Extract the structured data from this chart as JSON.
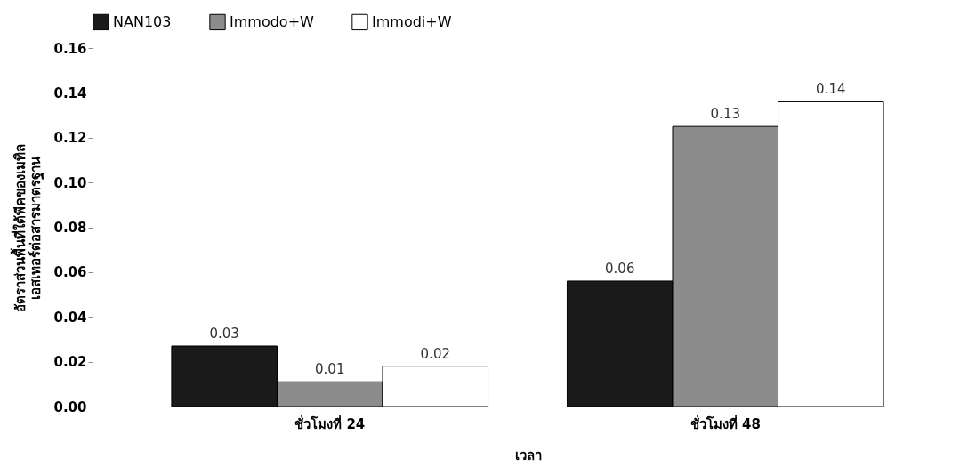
{
  "chart_data": {
    "type": "bar",
    "xlabel": "เวลา",
    "ylabel": [
      "อัตราส่วนพื้นที่ใต้พีคของเมทิล",
      "เอสเทอร์ต่อสารมาตรฐาน"
    ],
    "categories": [
      "ชั่วโมงที่ 24",
      "ชั่วโมงที่ 48"
    ],
    "series": [
      {
        "name": "NAN103",
        "color": "#1a1a1a",
        "values": [
          0.027,
          0.056
        ],
        "value_labels": [
          "0.03",
          "0.06"
        ]
      },
      {
        "name": "Immodo+W",
        "color": "#8c8c8c",
        "values": [
          0.011,
          0.125
        ],
        "value_labels": [
          "0.01",
          "0.13"
        ]
      },
      {
        "name": "Immodi+W",
        "color": "#ffffff",
        "values": [
          0.018,
          0.136
        ],
        "value_labels": [
          "0.02",
          "0.14"
        ]
      }
    ],
    "ylim": [
      0,
      0.16
    ],
    "yticks": [
      {
        "value": 0,
        "label": "0.00"
      },
      {
        "value": 0.02,
        "label": "0.02"
      },
      {
        "value": 0.04,
        "label": "0.04"
      },
      {
        "value": 0.06,
        "label": "0.06"
      },
      {
        "value": 0.08,
        "label": "0.08"
      },
      {
        "value": 0.1,
        "label": "0.10"
      },
      {
        "value": 0.12,
        "label": "0.12"
      },
      {
        "value": 0.14,
        "label": "0.14"
      },
      {
        "value": 0.16,
        "label": "0.16"
      }
    ],
    "grid": false,
    "legend": "top"
  }
}
